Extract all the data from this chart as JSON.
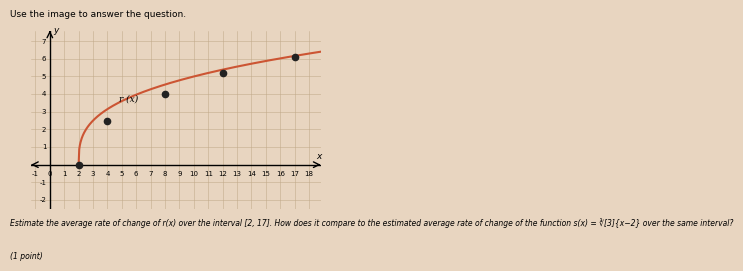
{
  "title_text": "Use the image to answer the question.",
  "func_label": "r (x)",
  "x_label": "x",
  "y_label": "y",
  "x_min": -1,
  "x_max": 18,
  "y_min": -2,
  "y_max": 7,
  "x_ticks_major": [
    -1,
    0,
    1,
    2,
    3,
    4,
    5,
    6,
    7,
    8,
    9,
    10,
    11,
    12,
    13,
    14,
    15,
    16,
    17,
    18
  ],
  "y_ticks_major": [
    -2,
    -1,
    0,
    1,
    2,
    3,
    4,
    5,
    6,
    7
  ],
  "dots": [
    [
      2,
      0
    ],
    [
      4,
      2.5
    ],
    [
      8,
      4.0
    ],
    [
      12,
      5.2
    ],
    [
      17,
      6.1
    ]
  ],
  "curve_color": "#cc5533",
  "dot_color": "#222222",
  "background_color": "#e8d5c0",
  "grid_color": "#c0a888",
  "graph_bg": "#d4bda0",
  "question_text": "Estimate the average rate of change of r(x) over the interval [2, 17]. How does it compare to the estimated average rate of change of the function s(x) = ∛[3]{x−2} over the same interval?",
  "points_text": "(1 point)",
  "tick_fontsize": 5.0,
  "label_fontsize": 6.5,
  "title_fontsize": 6.5,
  "question_fontsize": 5.5
}
